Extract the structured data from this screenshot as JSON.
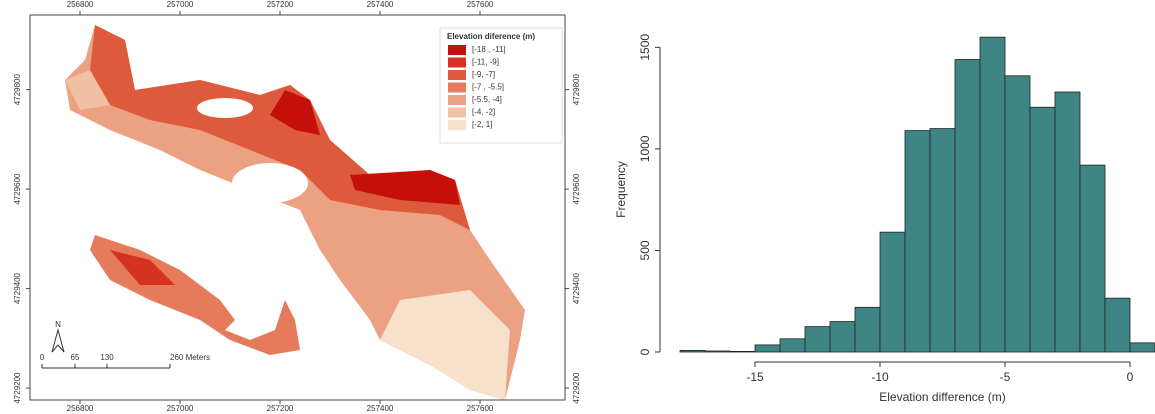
{
  "chart_data": [
    {
      "type": "map",
      "xlim": [
        256700,
        257770
      ],
      "xticks": [
        256800,
        257000,
        257200,
        257400,
        257600
      ],
      "ylim": [
        4729176,
        4729950
      ],
      "yticks": [
        4729200,
        4729400,
        4729600,
        4729800
      ],
      "legend_title": "Elevation diference (m)",
      "legend": [
        {
          "label": "[-18 , -11]",
          "color": "#c40f0a"
        },
        {
          "label": "[-11, -9]",
          "color": "#d4331f"
        },
        {
          "label": "[-9, -7]",
          "color": "#dd5a3d"
        },
        {
          "label": "[-7 , -5.5]",
          "color": "#e57b5b"
        },
        {
          "label": "[-5.5, -4]",
          "color": "#eca183"
        },
        {
          "label": "[-4, -2]",
          "color": "#f2c1a3"
        },
        {
          "label": "[-2, 1]",
          "color": "#f8e1cb"
        }
      ],
      "north": "N",
      "scale_labels": [
        "0",
        "65",
        "130",
        "260 Meters"
      ]
    },
    {
      "type": "histogram",
      "xlabel": "Elevation difference (m)",
      "ylabel": "Frequency",
      "color": "#3f8585",
      "bins": [
        -18,
        -17,
        -16,
        -15,
        -14,
        -13,
        -12,
        -11,
        -10,
        -9,
        -8,
        -7,
        -6,
        -5,
        -4,
        -3,
        -2,
        -1,
        0,
        1
      ],
      "values": [
        8,
        5,
        3,
        35,
        65,
        125,
        150,
        220,
        590,
        1090,
        1100,
        1440,
        1550,
        1360,
        1205,
        1280,
        920,
        265,
        45
      ],
      "xlim": [
        -18.5,
        1
      ],
      "xticks": [
        -15,
        -10,
        -5,
        0
      ],
      "ylim": [
        0,
        1600
      ],
      "yticks": [
        0,
        500,
        1000,
        1500
      ]
    }
  ]
}
